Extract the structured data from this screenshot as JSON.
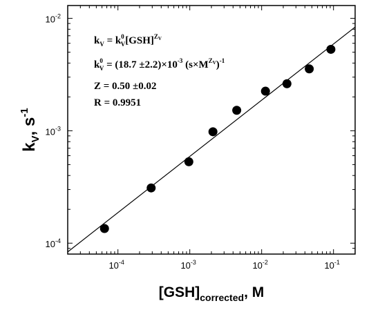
{
  "chart_data": {
    "type": "scatter",
    "xscale": "log",
    "yscale": "log",
    "xlim": [
      2e-05,
      0.2
    ],
    "ylim": [
      8e-05,
      0.013
    ],
    "x_tick_labels": [
      {
        "value": 0.0001,
        "mantissa": "10",
        "exp": "-4"
      },
      {
        "value": 0.001,
        "mantissa": "10",
        "exp": "-3"
      },
      {
        "value": 0.01,
        "mantissa": "10",
        "exp": "-2"
      },
      {
        "value": 0.1,
        "mantissa": "10",
        "exp": "-1"
      }
    ],
    "y_tick_labels": [
      {
        "value": 0.0001,
        "mantissa": "10",
        "exp": "-4"
      },
      {
        "value": 0.001,
        "mantissa": "10",
        "exp": "-3"
      },
      {
        "value": 0.01,
        "mantissa": "10",
        "exp": "-2"
      }
    ],
    "xlabel": {
      "main": "[GSH]",
      "sub": "corrected",
      "rest": ", M"
    },
    "ylabel": {
      "main": "k",
      "sub": "V",
      "rest": ", s",
      "sup": "-1"
    },
    "points": [
      {
        "x": 6.5e-05,
        "y": 0.000135
      },
      {
        "x": 0.00029,
        "y": 0.00031
      },
      {
        "x": 0.00097,
        "y": 0.00053
      },
      {
        "x": 0.0021,
        "y": 0.00098
      },
      {
        "x": 0.0045,
        "y": 0.00152
      },
      {
        "x": 0.0113,
        "y": 0.00225
      },
      {
        "x": 0.0225,
        "y": 0.00262
      },
      {
        "x": 0.046,
        "y": 0.00355
      },
      {
        "x": 0.092,
        "y": 0.0053
      }
    ],
    "fit_line": {
      "k0": 0.0187,
      "z": 0.5
    },
    "annotations": {
      "line1": {
        "lhs": "k",
        "lhs_sub": "V",
        "eq": " = k",
        "k_sup": "0",
        "k_sub": "V",
        "bracket": "[GSH]",
        "sup": "Z",
        "sup_sub": "V"
      },
      "line2": {
        "lhs": "k",
        "lhs_sup": "0",
        "lhs_sub": "V",
        "eq": " = (18.7 ±2.2)×10",
        "exp": "-3",
        "unit_open": " (s×M",
        "unit_sup": "Z",
        "unit_sup_sub": "V",
        "unit_close": ")",
        "unit_exp": "-1"
      },
      "line3": "Z = 0.50 ±0.02",
      "line4": "R = 0.9951"
    },
    "grid": false,
    "legend": "none"
  }
}
